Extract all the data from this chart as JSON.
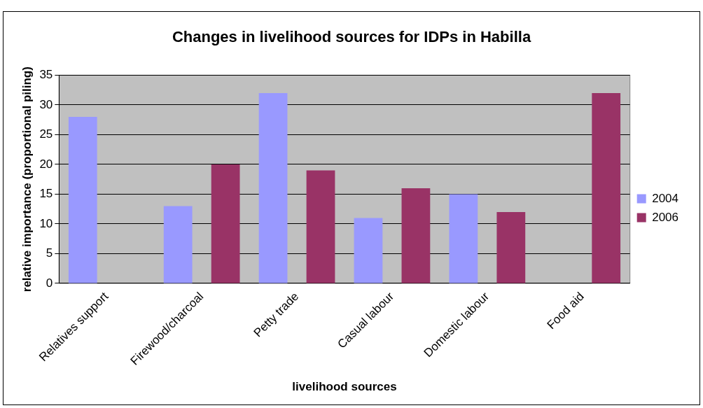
{
  "chart_data": {
    "type": "bar",
    "title": "Changes in livelihood sources for IDPs in Habilla",
    "xlabel": "livelihood sources",
    "ylabel": "relative importance (proportional piling)",
    "categories": [
      "Relatives support",
      "Firewood/charcoal",
      "Petty trade",
      "Casual labour",
      "Domestic labour",
      "Food aid"
    ],
    "series": [
      {
        "name": "2004",
        "color": "#9999ff",
        "values": [
          28,
          13,
          32,
          11,
          15,
          null
        ]
      },
      {
        "name": "2006",
        "color": "#993366",
        "values": [
          null,
          20,
          19,
          16,
          12,
          32
        ]
      }
    ],
    "ylim": [
      0,
      35
    ],
    "yticks": [
      0,
      5,
      10,
      15,
      20,
      25,
      30,
      35
    ],
    "grid": "y",
    "legend": "right"
  }
}
